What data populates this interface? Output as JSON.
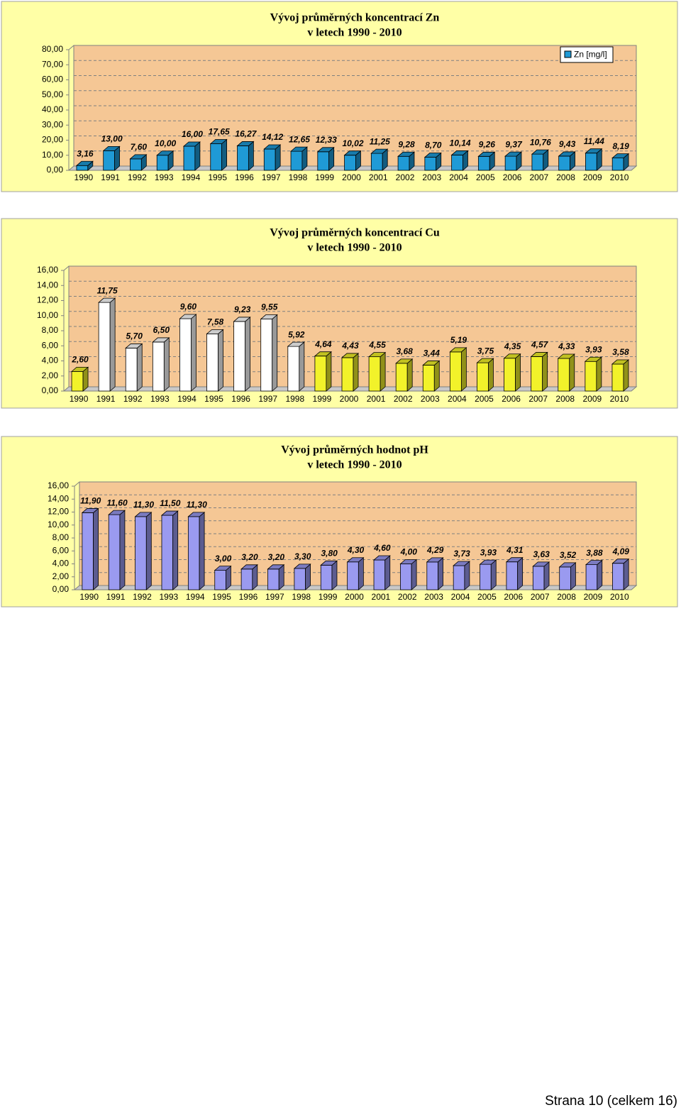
{
  "chart_data": [
    {
      "type": "bar3d",
      "title": "Vývoj průměrných koncentrací  Zn",
      "subtitle": "v letech 1990 - 2010",
      "categories": [
        "1990",
        "1991",
        "1992",
        "1993",
        "1994",
        "1995",
        "1996",
        "1997",
        "1998",
        "1999",
        "2000",
        "2001",
        "2002",
        "2003",
        "2004",
        "2005",
        "2006",
        "2007",
        "2008",
        "2009",
        "2010"
      ],
      "series": [
        {
          "name": "Zn [mg/l]",
          "color": "#1f9ad6",
          "values": [
            3.16,
            13.0,
            7.6,
            10.0,
            16.0,
            17.65,
            16.27,
            14.12,
            12.65,
            12.33,
            10.02,
            11.25,
            9.28,
            8.7,
            10.14,
            9.26,
            9.37,
            10.76,
            9.43,
            11.44,
            8.19
          ],
          "value_labels": [
            "3,16",
            "13,00",
            "7,60",
            "10,00",
            "16,00",
            "17,65",
            "16,27",
            "14,12",
            "12,65",
            "12,33",
            "10,02",
            "11,25",
            "9,28",
            "8,70",
            "10,14",
            "9,26",
            "9,37",
            "10,76",
            "9,43",
            "11,44",
            "8,19"
          ]
        }
      ],
      "ylim": [
        0,
        80
      ],
      "yticks": [
        {
          "value": 0,
          "label": "0,00"
        },
        {
          "value": 10,
          "label": "10,00"
        },
        {
          "value": 20,
          "label": "20,00"
        },
        {
          "value": 30,
          "label": "30,00"
        },
        {
          "value": 40,
          "label": "40,00"
        },
        {
          "value": 50,
          "label": "50,00"
        },
        {
          "value": 60,
          "label": "60,00"
        },
        {
          "value": 70,
          "label": "70,00"
        },
        {
          "value": 80,
          "label": "80,00"
        }
      ],
      "grid": true,
      "legend": "top-right"
    },
    {
      "type": "bar3d",
      "title": "Vývoj průměrných koncentrací  Cu",
      "subtitle": "v letech 1990 - 2010",
      "categories": [
        "1990",
        "1991",
        "1992",
        "1993",
        "1994",
        "1995",
        "1996",
        "1997",
        "1998",
        "1999",
        "2000",
        "2001",
        "2002",
        "2003",
        "2004",
        "2005",
        "2006",
        "2007",
        "2008",
        "2009",
        "2010"
      ],
      "values": [
        2.6,
        11.75,
        5.7,
        6.5,
        9.6,
        7.58,
        9.23,
        9.55,
        5.92,
        4.64,
        4.43,
        4.55,
        3.68,
        3.44,
        5.19,
        3.75,
        4.35,
        4.57,
        4.33,
        3.93,
        3.58
      ],
      "value_labels": [
        "2,60",
        "11,75",
        "5,70",
        "6,50",
        "9,60",
        "7,58",
        "9,23",
        "9,55",
        "5,92",
        "4,64",
        "4,43",
        "4,55",
        "3,68",
        "3,44",
        "5,19",
        "3,75",
        "4,35",
        "4,57",
        "4,33",
        "3,93",
        "3,58"
      ],
      "colors": [
        "#f2f22a",
        "#ffffff",
        "#ffffff",
        "#ffffff",
        "#ffffff",
        "#ffffff",
        "#ffffff",
        "#ffffff",
        "#ffffff",
        "#f2f22a",
        "#f2f22a",
        "#f2f22a",
        "#f2f22a",
        "#f2f22a",
        "#f2f22a",
        "#f2f22a",
        "#f2f22a",
        "#f2f22a",
        "#f2f22a",
        "#f2f22a",
        "#f2f22a"
      ],
      "ylim": [
        0,
        16
      ],
      "yticks": [
        {
          "value": 0,
          "label": "0,00"
        },
        {
          "value": 2,
          "label": "2,00"
        },
        {
          "value": 4,
          "label": "4,00"
        },
        {
          "value": 6,
          "label": "6,00"
        },
        {
          "value": 8,
          "label": "8,00"
        },
        {
          "value": 10,
          "label": "10,00"
        },
        {
          "value": 12,
          "label": "12,00"
        },
        {
          "value": 14,
          "label": "14,00"
        },
        {
          "value": 16,
          "label": "16,00"
        }
      ],
      "grid": true
    },
    {
      "type": "bar3d",
      "title": "Vývoj průměrných hodnot  pH",
      "subtitle": "v letech 1990 - 2010",
      "categories": [
        "1990",
        "1991",
        "1992",
        "1993",
        "1994",
        "1995",
        "1996",
        "1997",
        "1998",
        "1999",
        "2000",
        "2001",
        "2002",
        "2003",
        "2004",
        "2005",
        "2006",
        "2007",
        "2008",
        "2009",
        "2010"
      ],
      "values": [
        11.9,
        11.6,
        11.3,
        11.5,
        11.3,
        3.0,
        3.2,
        3.2,
        3.3,
        3.8,
        4.3,
        4.6,
        4.0,
        4.29,
        3.73,
        3.93,
        4.31,
        3.63,
        3.52,
        3.88,
        4.09
      ],
      "value_labels": [
        "11,90",
        "11,60",
        "11,30",
        "11,50",
        "11,30",
        "3,00",
        "3,20",
        "3,20",
        "3,30",
        "3,80",
        "4,30",
        "4,60",
        "4,00",
        "4,29",
        "3,73",
        "3,93",
        "4,31",
        "3,63",
        "3,52",
        "3,88",
        "4,09"
      ],
      "color": "#9a9af0",
      "ylim": [
        0,
        16
      ],
      "yticks": [
        {
          "value": 0,
          "label": "0,00"
        },
        {
          "value": 2,
          "label": "2,00"
        },
        {
          "value": 4,
          "label": "4,00"
        },
        {
          "value": 6,
          "label": "6,00"
        },
        {
          "value": 8,
          "label": "8,00"
        },
        {
          "value": 10,
          "label": "10,00"
        },
        {
          "value": 12,
          "label": "12,00"
        },
        {
          "value": 14,
          "label": "14,00"
        },
        {
          "value": 16,
          "label": "16,00"
        }
      ],
      "grid": true
    }
  ],
  "footer": "Strana 10 (celkem 16)"
}
